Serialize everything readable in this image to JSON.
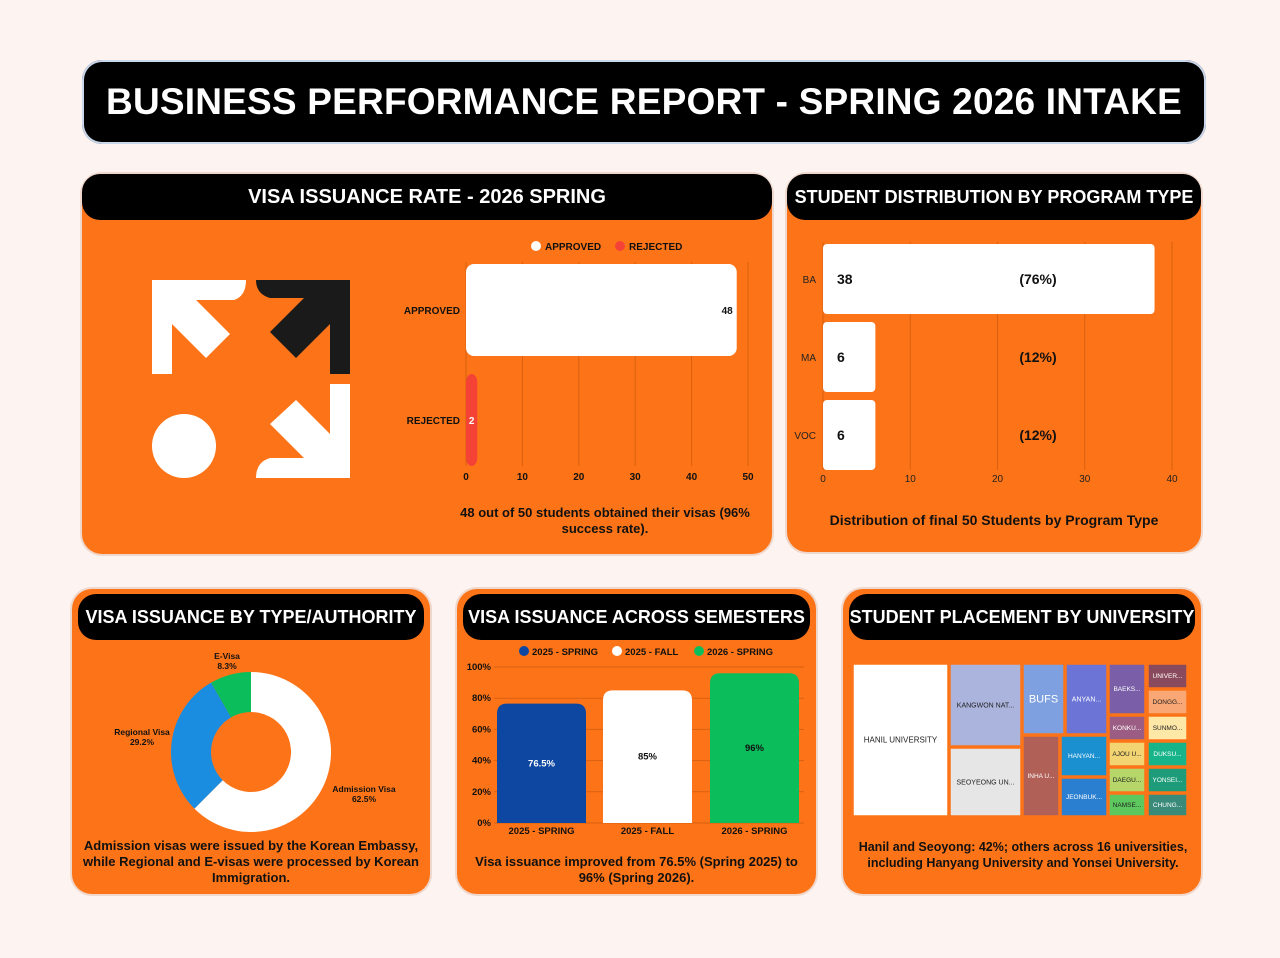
{
  "title": "BUSINESS PERFORMANCE REPORT - SPRING 2026 INTAKE",
  "colors": {
    "orange": "#fd7418",
    "black": "#000000",
    "white": "#ffffff",
    "red": "#f44336",
    "blue": "#0d47a1",
    "green": "#0cbd5c",
    "sky": "#1a8de0"
  },
  "visa_rate": {
    "heading": "VISA ISSUANCE RATE - 2026 SPRING",
    "icon": "arrows-graphic-icon",
    "description": "48 out of 50 students obtained their visas (96% success rate)."
  },
  "program": {
    "heading": "STUDENT DISTRIBUTION BY PROGRAM TYPE",
    "description": "Distribution of final 50 Students by Program Type"
  },
  "visa_type": {
    "heading": "VISA ISSUANCE BY TYPE/AUTHORITY",
    "description": "Admission visas were issued by the Korean Embassy, while Regional and E-visas were processed by Korean Immigration."
  },
  "semesters": {
    "heading": "VISA ISSUANCE ACROSS SEMESTERS",
    "description": "Visa issuance improved from 76.5% (Spring 2025) to 96% (Spring 2026)."
  },
  "placement": {
    "heading": "STUDENT PLACEMENT BY UNIVERSITY",
    "description": "Hanil and Seoyong: 42%; others across 16 universities, including Hanyang University and Yonsei University."
  },
  "chart_data": [
    {
      "id": "visa-rate",
      "type": "bar",
      "orientation": "horizontal",
      "categories": [
        "APPROVED",
        "REJECTED"
      ],
      "values": [
        48,
        2
      ],
      "legend": [
        "APPROVED",
        "REJECTED"
      ],
      "xlim": [
        0,
        50
      ],
      "xticks": [
        0,
        10,
        20,
        30,
        40,
        50
      ]
    },
    {
      "id": "program",
      "type": "bar",
      "orientation": "horizontal",
      "categories": [
        "BA",
        "MA",
        "VOC"
      ],
      "values": [
        38,
        6,
        6
      ],
      "percent_labels": [
        "(76%)",
        "(12%)",
        "(12%)"
      ],
      "xlim": [
        0,
        40
      ],
      "xticks": [
        0,
        10,
        20,
        30,
        40
      ]
    },
    {
      "id": "visa-type",
      "type": "pie",
      "labels": [
        "Admission Visa",
        "Regional Visa",
        "E-Visa"
      ],
      "values": [
        62.5,
        29.2,
        8.3
      ],
      "value_labels": [
        "62.5%",
        "29.2%",
        "8.3%"
      ]
    },
    {
      "id": "semesters",
      "type": "bar",
      "categories": [
        "2025 - SPRING",
        "2025 - FALL",
        "2026 - SPRING"
      ],
      "values": [
        76.5,
        85,
        96
      ],
      "value_labels": [
        "76.5%",
        "85%",
        "96%"
      ],
      "legend": [
        "2025 - SPRING",
        "2025 - FALL",
        "2026 - SPRING"
      ],
      "ylim": [
        0,
        100
      ],
      "yticks": [
        "0%",
        "20%",
        "40%",
        "60%",
        "80%",
        "100%"
      ]
    },
    {
      "id": "placement",
      "type": "treemap",
      "labels": [
        "HANIL UNIVERSITY",
        "KANGWON NAT...",
        "SEOYEONG UN...",
        "BUFS",
        "ANYAN...",
        "INHA U...",
        "HANYAN...",
        "JEONBUK...",
        "BAEKS...",
        "KONKU...",
        "AJOU U...",
        "DAEGU...",
        "NAMSE...",
        "UNIVER...",
        "DONGG...",
        "SUNMO...",
        "DUKSU...",
        "YONSEI...",
        "CHUNG..."
      ]
    }
  ]
}
